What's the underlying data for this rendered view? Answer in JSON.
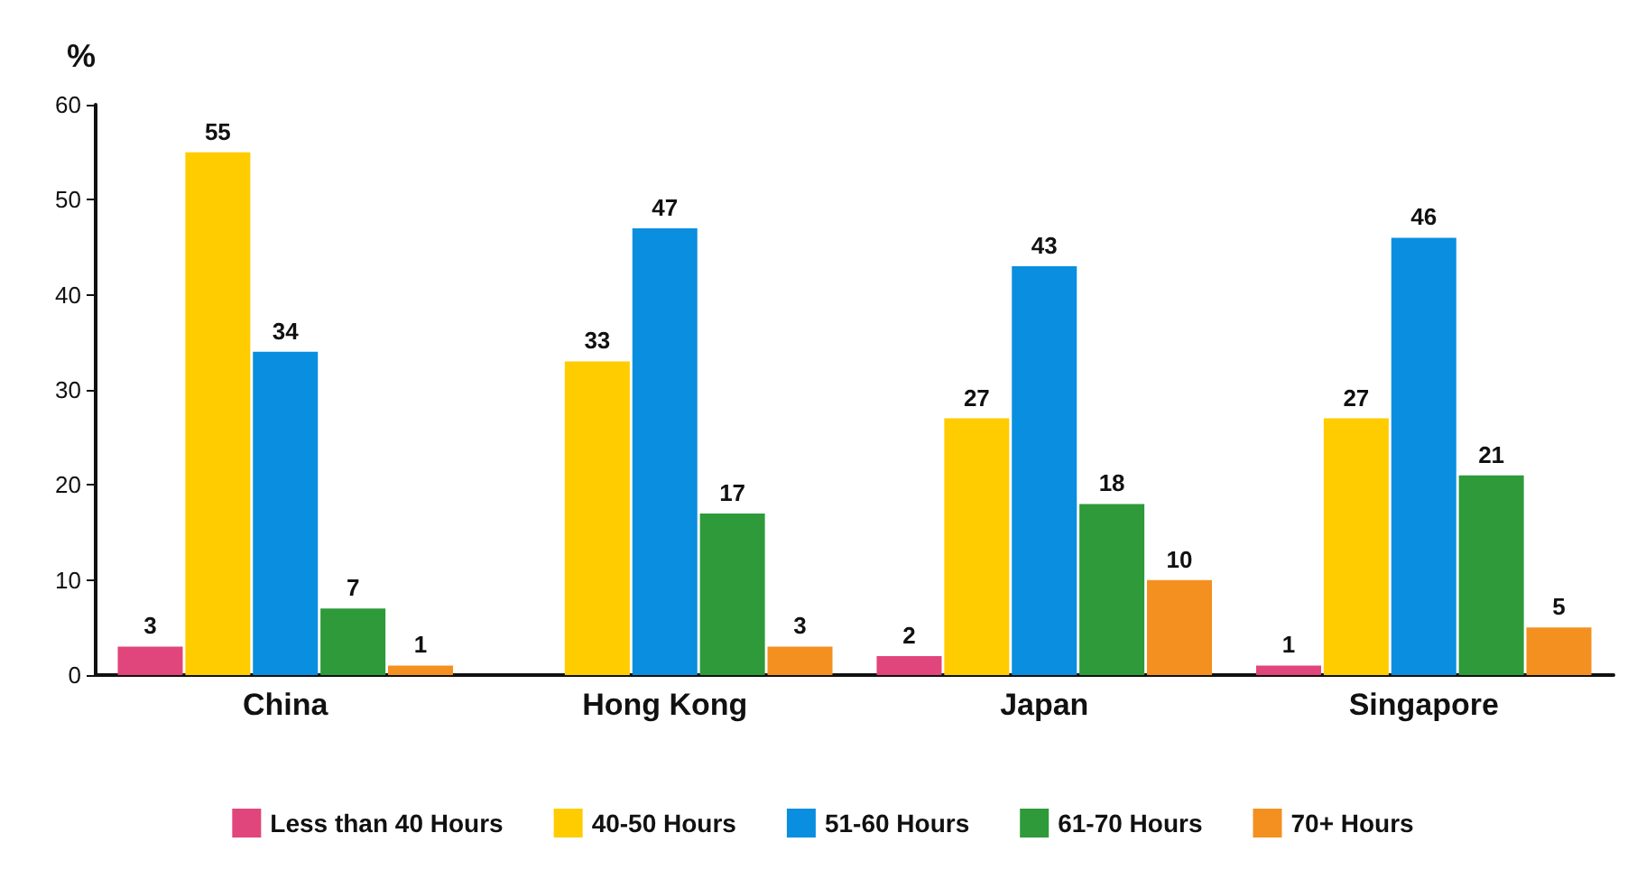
{
  "chart_data": {
    "type": "bar",
    "ylabel": "%",
    "categories": [
      "China",
      "Hong Kong",
      "Japan",
      "Singapore"
    ],
    "series": [
      {
        "name": "Less than 40 Hours",
        "color": "#e0457b",
        "values": [
          3,
          null,
          2,
          1
        ]
      },
      {
        "name": "40-50 Hours",
        "color": "#ffcc00",
        "values": [
          55,
          33,
          27,
          27
        ]
      },
      {
        "name": "51-60 Hours",
        "color": "#0a8ee0",
        "values": [
          34,
          47,
          43,
          46
        ]
      },
      {
        "name": "61-70 Hours",
        "color": "#2e9a3a",
        "values": [
          7,
          17,
          18,
          21
        ]
      },
      {
        "name": "70+ Hours",
        "color": "#f39020",
        "values": [
          1,
          3,
          10,
          5
        ]
      }
    ],
    "ylim": [
      0,
      60
    ],
    "yticks": [
      0,
      10,
      20,
      30,
      40,
      50,
      60
    ],
    "grid": false,
    "legend": "bottom",
    "data_labels": true
  }
}
